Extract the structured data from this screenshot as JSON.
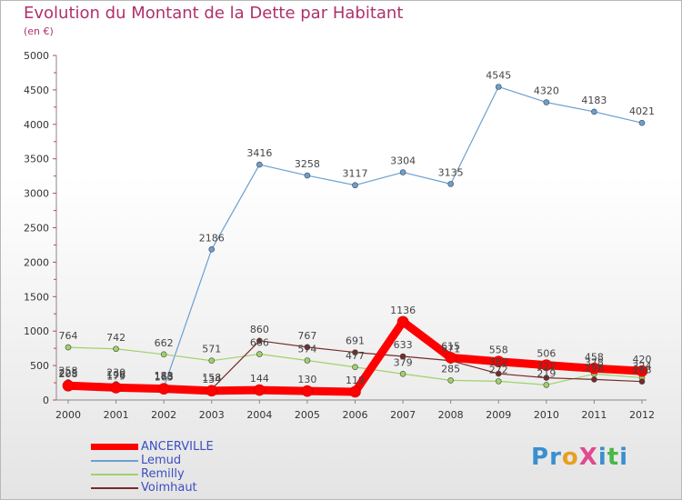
{
  "title": "Evolution du Montant de la Dette par Habitant",
  "subtitle": "(en €)",
  "logo": {
    "text": "ProXiti",
    "letters": [
      "P",
      "r",
      "o",
      "X",
      "i",
      "t",
      "i"
    ],
    "colors": [
      "#3a8fd0",
      "#3a8fd0",
      "#e8a020",
      "#e04a90",
      "#3a8fd0",
      "#48b848",
      "#3a8fd0"
    ]
  },
  "colors": {
    "ANCERVILLE": "#ff0000",
    "Lemud": "#6a9fd0",
    "Remilly": "#9fd26a",
    "Voimhaut": "#7a2a2a",
    "axis_text": "#333333",
    "tick": "#d04040"
  },
  "chart_data": {
    "type": "line",
    "title": "Evolution du Montant de la Dette par Habitant",
    "subtitle": "(en €)",
    "x": [
      "2000",
      "2001",
      "2002",
      "2003",
      "2004",
      "2005",
      "2006",
      "2007",
      "2008",
      "2009",
      "2010",
      "2011",
      "2012"
    ],
    "ylim": [
      0,
      5000
    ],
    "yticks": [
      "0",
      "500",
      "1000",
      "1500",
      "2000",
      "2500",
      "3000",
      "3500",
      "4000",
      "4500",
      "5000"
    ],
    "grid": false,
    "legend_position": "bottom-left",
    "series": [
      {
        "name": "ANCERVILLE",
        "values": [
          208,
          179,
          163,
          134,
          144,
          130,
          119,
          1136,
          615,
          558,
          506,
          458,
          420
        ],
        "labels": [
          "208",
          "179",
          "163",
          "134",
          "144",
          "130",
          "119",
          "1136",
          "615",
          "558",
          "506",
          "458",
          "420"
        ]
      },
      {
        "name": "Lemud",
        "values": [
          258,
          230,
          183,
          2186,
          3416,
          3258,
          3117,
          3304,
          3135,
          4545,
          4320,
          4183,
          4021
        ],
        "labels": [
          "258",
          "230",
          "183",
          "2186",
          "3416",
          "3258",
          "3117",
          "3304",
          "3135",
          "4545",
          "4320",
          "4183",
          "4021"
        ]
      },
      {
        "name": "Remilly",
        "values": [
          764,
          742,
          662,
          571,
          666,
          574,
          477,
          379,
          285,
          272,
          219,
          378,
          324
        ],
        "labels": [
          "764",
          "742",
          "662",
          "571",
          "666",
          "574",
          "477",
          "379",
          "285",
          "272",
          "219",
          "378",
          "324"
        ]
      },
      {
        "name": "Voimhaut",
        "values": [
          225,
          198,
          178,
          158,
          860,
          767,
          691,
          633,
          571,
          382,
          322,
          298,
          268
        ],
        "labels": [
          "225",
          "198",
          "178",
          "158",
          "860",
          "767",
          "691",
          "633",
          "571",
          "382",
          "322",
          "298",
          "268"
        ]
      }
    ]
  },
  "legend": [
    {
      "key": "ANCERVILLE",
      "label": "ANCERVILLE"
    },
    {
      "key": "Lemud",
      "label": "Lemud"
    },
    {
      "key": "Remilly",
      "label": "Remilly"
    },
    {
      "key": "Voimhaut",
      "label": "Voimhaut"
    }
  ]
}
